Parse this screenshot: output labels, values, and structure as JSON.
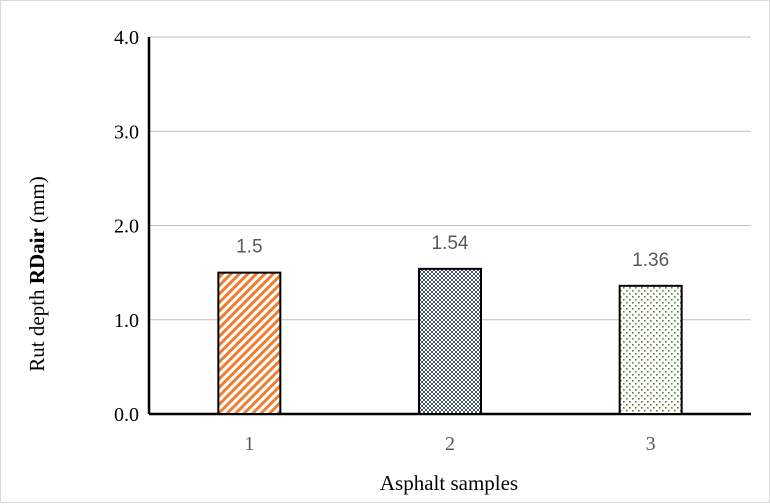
{
  "chart_data": {
    "type": "bar",
    "categories": [
      "1",
      "2",
      "3"
    ],
    "values": [
      1.5,
      1.54,
      1.36
    ],
    "data_labels": [
      "1.5",
      "1.54",
      "1.36"
    ],
    "xlabel": "Asphalt samples",
    "ylabel_parts": {
      "pre": "Rut depth ",
      "bold": "RDair",
      "post": " (mm)"
    },
    "ylim": [
      0,
      4
    ],
    "y_ticks": [
      "0.0",
      "1.0",
      "2.0",
      "3.0",
      "4.0"
    ],
    "grid": true,
    "legend": "none",
    "bar_patterns": [
      "orange-diagonal-stripes",
      "blue-gray-checker",
      "green-dots"
    ],
    "colors": {
      "bar1": "#ed7d31",
      "bar2": "#44546a",
      "bar3": "#548235",
      "grid": "#bfbfbf",
      "axis": "#000000",
      "tick_text": "#595959",
      "label_text": "#000000"
    }
  }
}
